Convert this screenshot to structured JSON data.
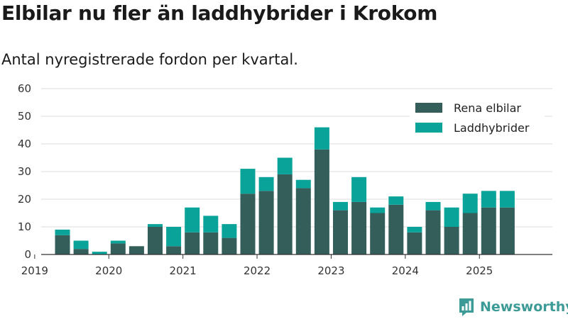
{
  "title": "Elbilar nu fler än laddhybrider i Krokom",
  "subtitle": "Antal nyregistrerade fordon per kvartal.",
  "brand": {
    "name": "Newsworthy",
    "color": "#3d9b97",
    "icon": "bar-chart-logo-icon"
  },
  "chart_data": {
    "type": "bar",
    "stacked": true,
    "categories": [
      "2019 Q2",
      "2019 Q3",
      "2019 Q4",
      "2020 Q1",
      "2020 Q2",
      "2020 Q3",
      "2020 Q4",
      "2021 Q1",
      "2021 Q2",
      "2021 Q3",
      "2021 Q4",
      "2022 Q1",
      "2022 Q2",
      "2022 Q3",
      "2022 Q4",
      "2023 Q1",
      "2023 Q2",
      "2023 Q3",
      "2023 Q4",
      "2024 Q1",
      "2024 Q2",
      "2024 Q3",
      "2024 Q4",
      "2025 Q1",
      "2025 Q2"
    ],
    "x_tick_labels": [
      "2019",
      "2020",
      "2021",
      "2022",
      "2023",
      "2024",
      "2025"
    ],
    "series": [
      {
        "name": "Rena elbilar",
        "color": "#335e5a",
        "values": [
          7,
          2,
          0,
          4,
          3,
          10,
          3,
          8,
          8,
          6,
          22,
          23,
          29,
          24,
          38,
          16,
          19,
          15,
          18,
          8,
          16,
          10,
          15,
          17,
          17
        ]
      },
      {
        "name": "Laddhybrider",
        "color": "#0aa39a",
        "values": [
          2,
          3,
          1,
          1,
          0,
          1,
          7,
          9,
          6,
          5,
          9,
          5,
          6,
          3,
          8,
          3,
          9,
          2,
          3,
          2,
          3,
          7,
          7,
          6,
          6
        ]
      }
    ],
    "ylim": [
      0,
      60
    ],
    "y_ticks": [
      0,
      10,
      20,
      30,
      40,
      50,
      60
    ],
    "grid": true,
    "legend_position": "top-right"
  }
}
